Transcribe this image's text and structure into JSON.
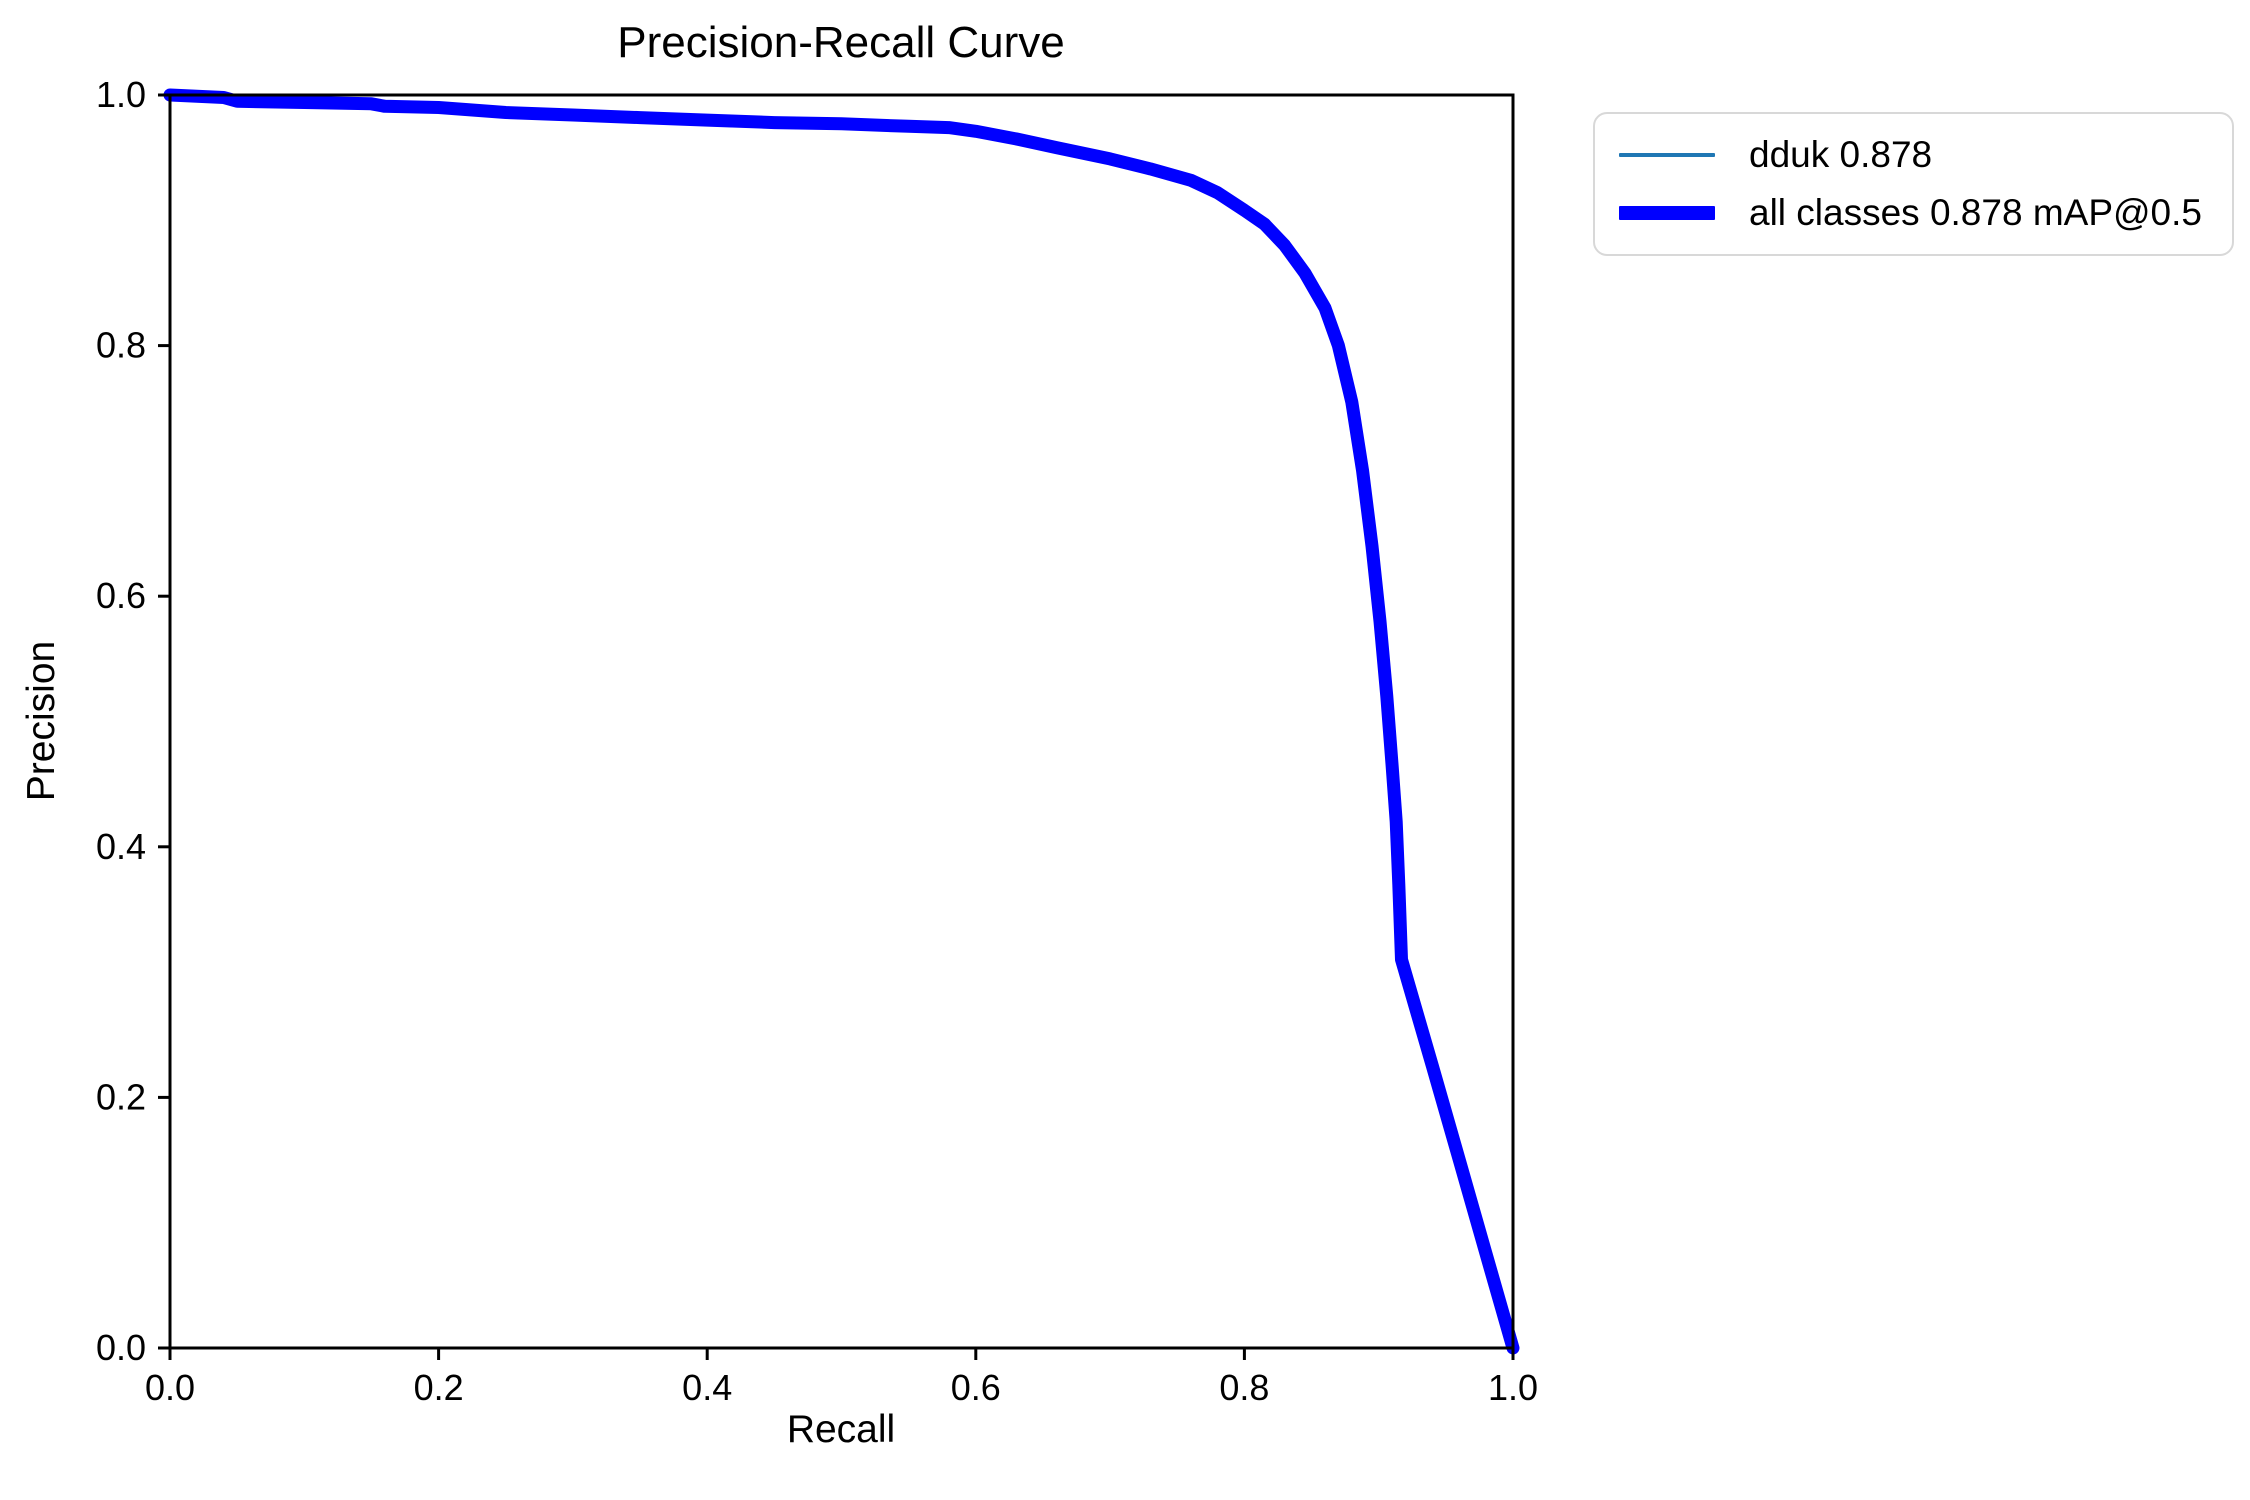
{
  "figure": {
    "title": "Precision-Recall Curve",
    "xlabel": "Recall",
    "ylabel": "Precision"
  },
  "legend": {
    "entries": [
      {
        "label": "dduk 0.878",
        "color": "#1f77b4",
        "thickness": "thin"
      },
      {
        "label": "all classes 0.878 mAP@0.5",
        "color": "#0000ff",
        "thickness": "thick"
      }
    ]
  },
  "chart_data": {
    "type": "line",
    "title": "Precision-Recall Curve",
    "xlabel": "Recall",
    "ylabel": "Precision",
    "xlim": [
      0.0,
      1.0
    ],
    "ylim": [
      0.0,
      1.0
    ],
    "x_ticks": [
      "0.0",
      "0.2",
      "0.4",
      "0.6",
      "0.8",
      "1.0"
    ],
    "y_ticks": [
      "0.0",
      "0.2",
      "0.4",
      "0.6",
      "0.8",
      "1.0"
    ],
    "grid": false,
    "legend_position": "outside-upper-right",
    "axis_color": "#000000",
    "points": [
      [
        0.0,
        1.0
      ],
      [
        0.02,
        0.999
      ],
      [
        0.04,
        0.998
      ],
      [
        0.05,
        0.995
      ],
      [
        0.1,
        0.994
      ],
      [
        0.15,
        0.993
      ],
      [
        0.16,
        0.991
      ],
      [
        0.2,
        0.99
      ],
      [
        0.25,
        0.986
      ],
      [
        0.3,
        0.984
      ],
      [
        0.35,
        0.982
      ],
      [
        0.4,
        0.98
      ],
      [
        0.45,
        0.978
      ],
      [
        0.5,
        0.977
      ],
      [
        0.55,
        0.975
      ],
      [
        0.58,
        0.974
      ],
      [
        0.6,
        0.971
      ],
      [
        0.63,
        0.965
      ],
      [
        0.66,
        0.958
      ],
      [
        0.7,
        0.949
      ],
      [
        0.73,
        0.941
      ],
      [
        0.76,
        0.932
      ],
      [
        0.78,
        0.922
      ],
      [
        0.8,
        0.908
      ],
      [
        0.815,
        0.897
      ],
      [
        0.83,
        0.88
      ],
      [
        0.845,
        0.858
      ],
      [
        0.86,
        0.83
      ],
      [
        0.87,
        0.8
      ],
      [
        0.88,
        0.755
      ],
      [
        0.888,
        0.7
      ],
      [
        0.895,
        0.64
      ],
      [
        0.901,
        0.58
      ],
      [
        0.906,
        0.52
      ],
      [
        0.91,
        0.465
      ],
      [
        0.913,
        0.42
      ],
      [
        0.915,
        0.37
      ],
      [
        0.917,
        0.31
      ],
      [
        0.94,
        0.225
      ],
      [
        0.96,
        0.15
      ],
      [
        0.98,
        0.075
      ],
      [
        1.0,
        0.0
      ]
    ],
    "series": [
      {
        "name": "dduk 0.878",
        "color": "#1f77b4",
        "linewidth": 3,
        "uses_points": "points"
      },
      {
        "name": "all classes 0.878 mAP@0.5",
        "color": "#0000ff",
        "linewidth": 13,
        "uses_points": "points"
      }
    ]
  }
}
